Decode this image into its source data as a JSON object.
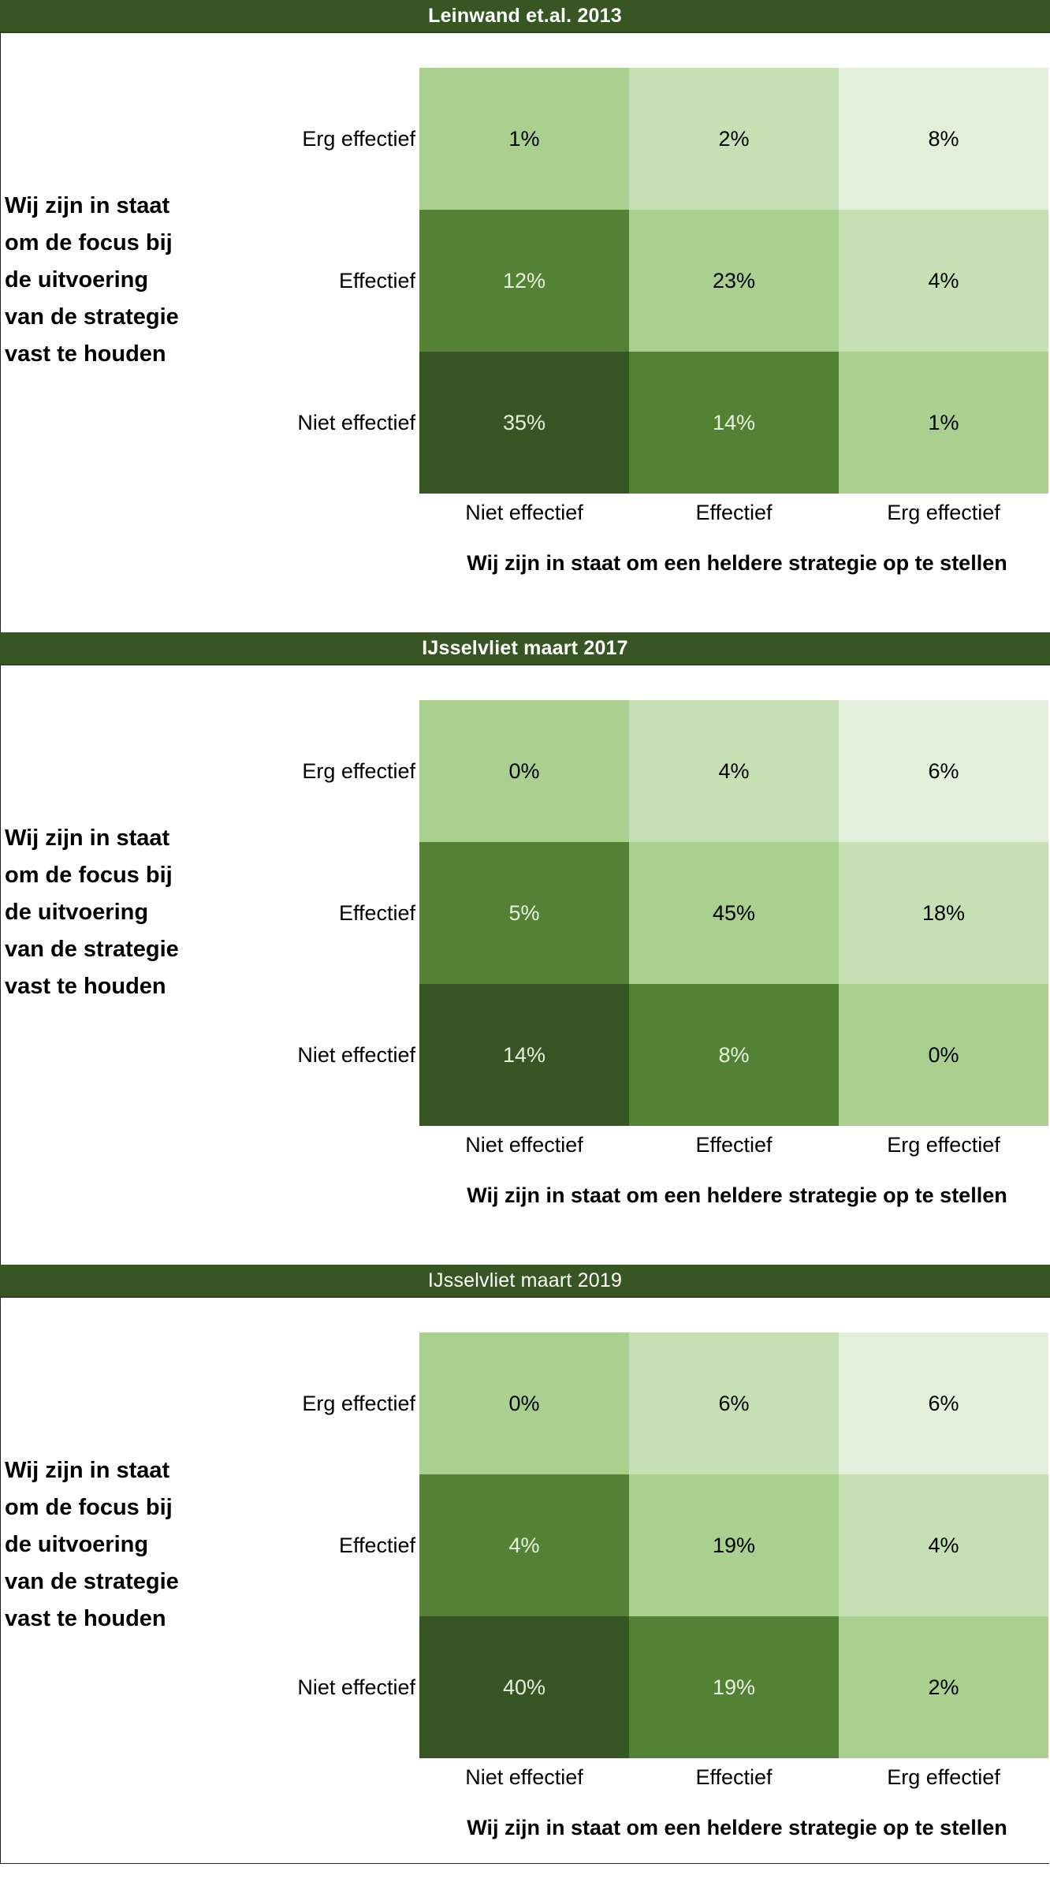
{
  "colors": {
    "header_bg": "#375623",
    "header_text": "#ffffff",
    "scale": [
      "#E2EFDA",
      "#C6E0B4",
      "#A9D08E",
      "#548235",
      "#375623"
    ],
    "dark_text": "#000000",
    "light_text": "#E8F0E0"
  },
  "chart_data": [
    {
      "type": "heatmap",
      "title": "Leinwand et.al. 2013",
      "xlabel": "Wij zijn in staat om een heldere strategie op te stellen",
      "ylabel_lines": [
        "Wij zijn in staat",
        "om de focus bij",
        "de uitvoering",
        "van de strategie",
        "vast te houden"
      ],
      "x_categories": [
        "Niet effectief",
        "Effectief",
        "Erg effectief"
      ],
      "y_categories": [
        "Erg effectief",
        "Effectief",
        "Niet effectief"
      ],
      "values": [
        [
          1,
          2,
          8
        ],
        [
          12,
          23,
          4
        ],
        [
          35,
          14,
          1
        ]
      ],
      "labels": [
        [
          "1%",
          "2%",
          "8%"
        ],
        [
          "12%",
          "23%",
          "4%"
        ],
        [
          "35%",
          "14%",
          "1%"
        ]
      ],
      "shade": [
        [
          2,
          1,
          0
        ],
        [
          3,
          2,
          1
        ],
        [
          4,
          3,
          2
        ]
      ],
      "unit": "%"
    },
    {
      "type": "heatmap",
      "title": "IJsselvliet maart 2017",
      "xlabel": "Wij zijn in staat om een heldere strategie op te stellen",
      "ylabel_lines": [
        "Wij zijn in staat",
        "om de focus bij",
        "de uitvoering",
        "van de strategie",
        "vast te houden"
      ],
      "x_categories": [
        "Niet effectief",
        "Effectief",
        "Erg effectief"
      ],
      "y_categories": [
        "Erg effectief",
        "Effectief",
        "Niet effectief"
      ],
      "values": [
        [
          0,
          4,
          6
        ],
        [
          5,
          45,
          18
        ],
        [
          14,
          8,
          0
        ]
      ],
      "labels": [
        [
          "0%",
          "4%",
          "6%"
        ],
        [
          "5%",
          "45%",
          "18%"
        ],
        [
          "14%",
          "8%",
          "0%"
        ]
      ],
      "shade": [
        [
          2,
          1,
          0
        ],
        [
          3,
          2,
          1
        ],
        [
          4,
          3,
          2
        ]
      ],
      "unit": "%"
    },
    {
      "type": "heatmap",
      "title": "IJsselvliet maart 2019",
      "xlabel": "Wij zijn in staat om een heldere strategie op te stellen",
      "ylabel_lines": [
        "Wij zijn in staat",
        "om de focus bij",
        "de uitvoering",
        "van de strategie",
        "vast te houden"
      ],
      "x_categories": [
        "Niet effectief",
        "Effectief",
        "Erg effectief"
      ],
      "y_categories": [
        "Erg effectief",
        "Effectief",
        "Niet effectief"
      ],
      "values": [
        [
          0,
          6,
          6
        ],
        [
          4,
          19,
          4
        ],
        [
          40,
          19,
          2
        ]
      ],
      "labels": [
        [
          "0%",
          "6%",
          "6%"
        ],
        [
          "4%",
          "19%",
          "4%"
        ],
        [
          "40%",
          "19%",
          "2%"
        ]
      ],
      "shade": [
        [
          2,
          1,
          0
        ],
        [
          3,
          2,
          1
        ],
        [
          4,
          3,
          2
        ]
      ],
      "unit": "%"
    }
  ]
}
